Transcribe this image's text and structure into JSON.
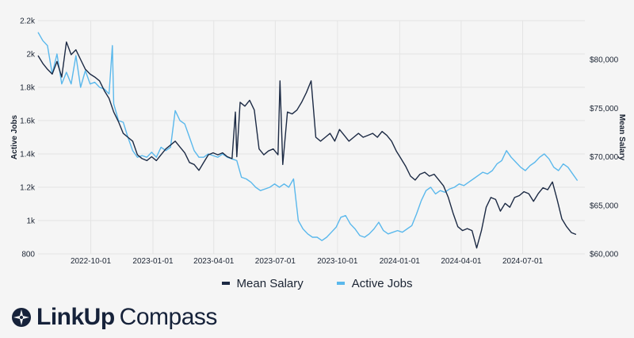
{
  "colors": {
    "background": "#f5f5f5",
    "grid": "#e4e4e4",
    "mean_salary": "#1c2a44",
    "active_jobs": "#5ab8ec",
    "text": "#1b2433"
  },
  "brand": {
    "logo_icon": "compass-star-icon",
    "name_bold": "LinkUp",
    "name_light": "Compass"
  },
  "chart_data": {
    "type": "line",
    "title": "",
    "x_axis": {
      "type": "date",
      "range": [
        "2022-07-15",
        "2024-10-01"
      ],
      "ticks": [
        "2022-10-01",
        "2023-01-01",
        "2023-04-01",
        "2023-07-01",
        "2023-10-01",
        "2024-01-01",
        "2024-04-01",
        "2024-07-01"
      ]
    },
    "y_left": {
      "label": "Active Jobs",
      "range": [
        800,
        2200
      ],
      "ticks": [
        800,
        1000,
        1200,
        1400,
        1600,
        1800,
        2000,
        2200
      ],
      "tick_labels": [
        "800",
        "1k",
        "1.2k",
        "1.4k",
        "1.6k",
        "1.8k",
        "2k",
        "2.2k"
      ]
    },
    "y_right": {
      "label": "Mean Salary",
      "range": [
        60000,
        84000
      ],
      "ticks": [
        60000,
        65000,
        70000,
        75000,
        80000
      ],
      "tick_labels": [
        "$60,000",
        "$65,000",
        "$70,000",
        "$75,000",
        "$80,000"
      ]
    },
    "grid": true,
    "legend": {
      "placement": "bottom-center",
      "entries": [
        "Mean Salary",
        "Active Jobs"
      ]
    },
    "series": [
      {
        "name": "Active Jobs",
        "axis": "left",
        "color": "#5ab8ec",
        "points": [
          [
            "2022-07-15",
            2130
          ],
          [
            "2022-07-22",
            2080
          ],
          [
            "2022-07-29",
            2050
          ],
          [
            "2022-08-05",
            1880
          ],
          [
            "2022-08-12",
            2000
          ],
          [
            "2022-08-19",
            1820
          ],
          [
            "2022-08-26",
            1890
          ],
          [
            "2022-09-02",
            1820
          ],
          [
            "2022-09-09",
            1990
          ],
          [
            "2022-09-16",
            1800
          ],
          [
            "2022-09-23",
            1900
          ],
          [
            "2022-09-30",
            1820
          ],
          [
            "2022-10-07",
            1830
          ],
          [
            "2022-10-14",
            1800
          ],
          [
            "2022-10-21",
            1790
          ],
          [
            "2022-10-28",
            1760
          ],
          [
            "2022-11-02",
            2050
          ],
          [
            "2022-11-04",
            1700
          ],
          [
            "2022-11-11",
            1600
          ],
          [
            "2022-11-18",
            1590
          ],
          [
            "2022-11-25",
            1500
          ],
          [
            "2022-12-02",
            1420
          ],
          [
            "2022-12-09",
            1380
          ],
          [
            "2022-12-16",
            1390
          ],
          [
            "2022-12-23",
            1380
          ],
          [
            "2022-12-30",
            1410
          ],
          [
            "2023-01-06",
            1380
          ],
          [
            "2023-01-13",
            1440
          ],
          [
            "2023-01-20",
            1420
          ],
          [
            "2023-01-27",
            1440
          ],
          [
            "2023-02-03",
            1660
          ],
          [
            "2023-02-10",
            1600
          ],
          [
            "2023-02-17",
            1580
          ],
          [
            "2023-02-24",
            1500
          ],
          [
            "2023-03-03",
            1420
          ],
          [
            "2023-03-10",
            1380
          ],
          [
            "2023-03-17",
            1380
          ],
          [
            "2023-03-24",
            1400
          ],
          [
            "2023-03-31",
            1390
          ],
          [
            "2023-04-07",
            1380
          ],
          [
            "2023-04-14",
            1400
          ],
          [
            "2023-04-21",
            1380
          ],
          [
            "2023-04-28",
            1370
          ],
          [
            "2023-05-05",
            1360
          ],
          [
            "2023-05-12",
            1260
          ],
          [
            "2023-05-19",
            1250
          ],
          [
            "2023-05-26",
            1230
          ],
          [
            "2023-06-02",
            1200
          ],
          [
            "2023-06-09",
            1180
          ],
          [
            "2023-06-16",
            1190
          ],
          [
            "2023-06-23",
            1200
          ],
          [
            "2023-06-30",
            1220
          ],
          [
            "2023-07-07",
            1200
          ],
          [
            "2023-07-14",
            1220
          ],
          [
            "2023-07-21",
            1200
          ],
          [
            "2023-07-28",
            1250
          ],
          [
            "2023-08-04",
            1000
          ],
          [
            "2023-08-11",
            950
          ],
          [
            "2023-08-18",
            920
          ],
          [
            "2023-08-25",
            900
          ],
          [
            "2023-09-01",
            900
          ],
          [
            "2023-09-08",
            880
          ],
          [
            "2023-09-15",
            900
          ],
          [
            "2023-09-22",
            930
          ],
          [
            "2023-09-29",
            960
          ],
          [
            "2023-10-06",
            1020
          ],
          [
            "2023-10-13",
            1030
          ],
          [
            "2023-10-20",
            980
          ],
          [
            "2023-10-27",
            950
          ],
          [
            "2023-11-03",
            910
          ],
          [
            "2023-11-10",
            900
          ],
          [
            "2023-11-17",
            920
          ],
          [
            "2023-11-24",
            950
          ],
          [
            "2023-12-01",
            990
          ],
          [
            "2023-12-08",
            940
          ],
          [
            "2023-12-15",
            920
          ],
          [
            "2023-12-22",
            930
          ],
          [
            "2023-12-29",
            940
          ],
          [
            "2024-01-05",
            930
          ],
          [
            "2024-01-12",
            950
          ],
          [
            "2024-01-19",
            970
          ],
          [
            "2024-01-26",
            1040
          ],
          [
            "2024-02-02",
            1120
          ],
          [
            "2024-02-09",
            1180
          ],
          [
            "2024-02-16",
            1200
          ],
          [
            "2024-02-23",
            1160
          ],
          [
            "2024-03-01",
            1180
          ],
          [
            "2024-03-08",
            1170
          ],
          [
            "2024-03-15",
            1190
          ],
          [
            "2024-03-22",
            1200
          ],
          [
            "2024-03-29",
            1220
          ],
          [
            "2024-04-05",
            1210
          ],
          [
            "2024-04-12",
            1230
          ],
          [
            "2024-04-19",
            1250
          ],
          [
            "2024-04-26",
            1270
          ],
          [
            "2024-05-03",
            1290
          ],
          [
            "2024-05-10",
            1280
          ],
          [
            "2024-05-17",
            1300
          ],
          [
            "2024-05-24",
            1340
          ],
          [
            "2024-05-31",
            1360
          ],
          [
            "2024-06-07",
            1420
          ],
          [
            "2024-06-14",
            1380
          ],
          [
            "2024-06-21",
            1350
          ],
          [
            "2024-06-28",
            1320
          ],
          [
            "2024-07-05",
            1300
          ],
          [
            "2024-07-12",
            1330
          ],
          [
            "2024-07-19",
            1350
          ],
          [
            "2024-07-26",
            1380
          ],
          [
            "2024-08-02",
            1400
          ],
          [
            "2024-08-09",
            1370
          ],
          [
            "2024-08-16",
            1320
          ],
          [
            "2024-08-23",
            1300
          ],
          [
            "2024-08-30",
            1340
          ],
          [
            "2024-09-06",
            1320
          ],
          [
            "2024-09-13",
            1280
          ],
          [
            "2024-09-20",
            1240
          ]
        ]
      },
      {
        "name": "Mean Salary",
        "axis": "right",
        "color": "#1c2a44",
        "points": [
          [
            "2022-07-15",
            80400
          ],
          [
            "2022-07-22",
            79600
          ],
          [
            "2022-07-29",
            79000
          ],
          [
            "2022-08-05",
            78500
          ],
          [
            "2022-08-12",
            79800
          ],
          [
            "2022-08-19",
            78200
          ],
          [
            "2022-08-26",
            81800
          ],
          [
            "2022-09-02",
            80500
          ],
          [
            "2022-09-09",
            81000
          ],
          [
            "2022-09-16",
            80000
          ],
          [
            "2022-09-23",
            79000
          ],
          [
            "2022-09-30",
            78500
          ],
          [
            "2022-10-07",
            78200
          ],
          [
            "2022-10-14",
            77800
          ],
          [
            "2022-10-21",
            76800
          ],
          [
            "2022-10-28",
            76000
          ],
          [
            "2022-11-04",
            74600
          ],
          [
            "2022-11-11",
            73600
          ],
          [
            "2022-11-18",
            72400
          ],
          [
            "2022-11-25",
            72000
          ],
          [
            "2022-12-02",
            71600
          ],
          [
            "2022-12-09",
            70200
          ],
          [
            "2022-12-16",
            69800
          ],
          [
            "2022-12-23",
            69600
          ],
          [
            "2022-12-30",
            70000
          ],
          [
            "2023-01-06",
            69600
          ],
          [
            "2023-01-13",
            70200
          ],
          [
            "2023-01-20",
            70800
          ],
          [
            "2023-01-27",
            71200
          ],
          [
            "2023-02-03",
            71600
          ],
          [
            "2023-02-10",
            71000
          ],
          [
            "2023-02-17",
            70400
          ],
          [
            "2023-02-24",
            69400
          ],
          [
            "2023-03-03",
            69200
          ],
          [
            "2023-03-10",
            68600
          ],
          [
            "2023-03-17",
            69400
          ],
          [
            "2023-03-24",
            70200
          ],
          [
            "2023-03-31",
            70400
          ],
          [
            "2023-04-07",
            70200
          ],
          [
            "2023-04-14",
            70400
          ],
          [
            "2023-04-21",
            70000
          ],
          [
            "2023-04-28",
            69800
          ],
          [
            "2023-05-03",
            74600
          ],
          [
            "2023-05-05",
            70000
          ],
          [
            "2023-05-10",
            75600
          ],
          [
            "2023-05-17",
            75200
          ],
          [
            "2023-05-24",
            75800
          ],
          [
            "2023-05-31",
            74800
          ],
          [
            "2023-06-07",
            70800
          ],
          [
            "2023-06-14",
            70200
          ],
          [
            "2023-06-21",
            70600
          ],
          [
            "2023-06-28",
            70800
          ],
          [
            "2023-07-05",
            70200
          ],
          [
            "2023-07-08",
            77800
          ],
          [
            "2023-07-12",
            69200
          ],
          [
            "2023-07-19",
            74600
          ],
          [
            "2023-07-26",
            74400
          ],
          [
            "2023-08-02",
            74800
          ],
          [
            "2023-08-09",
            75600
          ],
          [
            "2023-08-16",
            76600
          ],
          [
            "2023-08-23",
            77800
          ],
          [
            "2023-08-30",
            72000
          ],
          [
            "2023-09-06",
            71600
          ],
          [
            "2023-09-13",
            72000
          ],
          [
            "2023-09-20",
            72400
          ],
          [
            "2023-09-27",
            71600
          ],
          [
            "2023-10-04",
            72800
          ],
          [
            "2023-10-11",
            72200
          ],
          [
            "2023-10-18",
            71600
          ],
          [
            "2023-10-25",
            72000
          ],
          [
            "2023-11-01",
            72400
          ],
          [
            "2023-11-08",
            72000
          ],
          [
            "2023-11-15",
            72200
          ],
          [
            "2023-11-22",
            72400
          ],
          [
            "2023-11-29",
            72000
          ],
          [
            "2023-12-06",
            72600
          ],
          [
            "2023-12-13",
            72200
          ],
          [
            "2023-12-20",
            71600
          ],
          [
            "2023-12-27",
            70600
          ],
          [
            "2024-01-03",
            69800
          ],
          [
            "2024-01-10",
            69000
          ],
          [
            "2024-01-17",
            68000
          ],
          [
            "2024-01-24",
            67600
          ],
          [
            "2024-01-31",
            68200
          ],
          [
            "2024-02-07",
            68400
          ],
          [
            "2024-02-14",
            68000
          ],
          [
            "2024-02-21",
            68200
          ],
          [
            "2024-02-28",
            67600
          ],
          [
            "2024-03-06",
            67000
          ],
          [
            "2024-03-13",
            65800
          ],
          [
            "2024-03-20",
            64200
          ],
          [
            "2024-03-27",
            62800
          ],
          [
            "2024-04-03",
            62400
          ],
          [
            "2024-04-10",
            62600
          ],
          [
            "2024-04-17",
            62400
          ],
          [
            "2024-04-24",
            60600
          ],
          [
            "2024-05-01",
            62400
          ],
          [
            "2024-05-08",
            64800
          ],
          [
            "2024-05-15",
            65800
          ],
          [
            "2024-05-22",
            65600
          ],
          [
            "2024-05-29",
            64400
          ],
          [
            "2024-06-05",
            65200
          ],
          [
            "2024-06-12",
            64800
          ],
          [
            "2024-06-19",
            65800
          ],
          [
            "2024-06-26",
            66000
          ],
          [
            "2024-07-03",
            66400
          ],
          [
            "2024-07-10",
            66200
          ],
          [
            "2024-07-17",
            65400
          ],
          [
            "2024-07-24",
            66200
          ],
          [
            "2024-07-31",
            66800
          ],
          [
            "2024-08-07",
            66600
          ],
          [
            "2024-08-14",
            67400
          ],
          [
            "2024-08-21",
            65600
          ],
          [
            "2024-08-28",
            63600
          ],
          [
            "2024-09-04",
            62800
          ],
          [
            "2024-09-11",
            62200
          ],
          [
            "2024-09-18",
            62000
          ]
        ]
      }
    ]
  }
}
